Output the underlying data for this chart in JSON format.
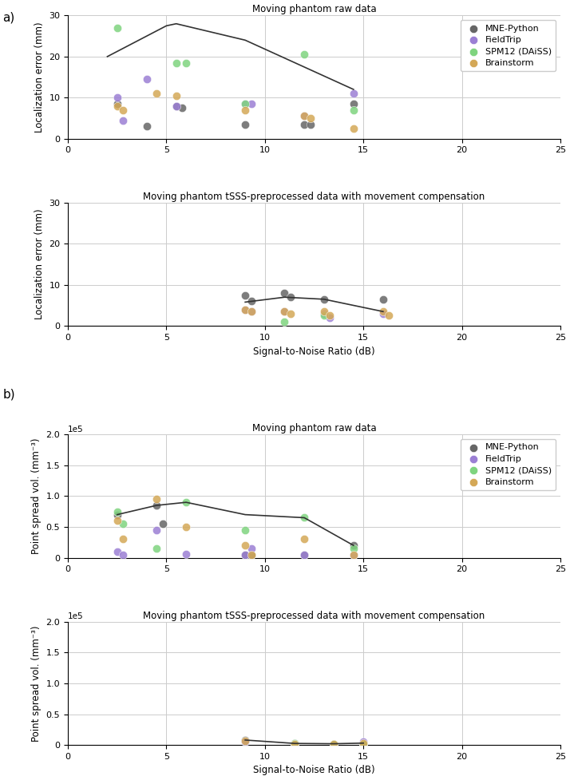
{
  "colors": {
    "MNE-Python": "#666666",
    "FieldTrip": "#9b7fd4",
    "SPM12 (DAiSS)": "#7fd47f",
    "Brainstorm": "#d4a857"
  },
  "legend_labels": [
    "MNE-Python",
    "FieldTrip",
    "SPM12 (DAiSS)",
    "Brainstorm"
  ],
  "panel_a_title1": "Moving phantom raw data",
  "panel_a_title2": "Moving phantom tSSS-preprocessed data with movement compensation",
  "panel_b_title1": "Moving phantom raw data",
  "panel_b_title2": "Moving phantom tSSS-preprocessed data with movement compensation",
  "ylabel_a": "Localization error (mm)",
  "ylabel_b": "Point spread vol. (mm⁻³)",
  "xlabel": "Signal-to-Noise Ratio (dB)",
  "panel_a1": {
    "ylim": [
      0,
      30
    ],
    "yticks": [
      0,
      10,
      20,
      30
    ],
    "xlim": [
      0,
      25
    ],
    "xticks": [
      0,
      5,
      10,
      15,
      20,
      25
    ],
    "MNE-Python": {
      "x": [
        2.5,
        4.0,
        5.5,
        5.8,
        9.0,
        12.0,
        12.3,
        14.5
      ],
      "y": [
        8.5,
        3.0,
        8.0,
        7.5,
        3.5,
        3.5,
        3.5,
        8.5
      ]
    },
    "FieldTrip": {
      "x": [
        2.5,
        2.8,
        4.0,
        5.5,
        9.0,
        9.3,
        12.0,
        14.5
      ],
      "y": [
        10.0,
        4.5,
        14.5,
        8.0,
        8.5,
        8.5,
        5.5,
        11.0
      ]
    },
    "SPM12 (DAiSS)": {
      "x": [
        2.5,
        5.5,
        6.0,
        9.0,
        12.0,
        14.5
      ],
      "y": [
        27.0,
        18.5,
        18.5,
        8.5,
        20.5,
        7.0
      ]
    },
    "Brainstorm": {
      "x": [
        2.5,
        2.8,
        4.5,
        5.5,
        9.0,
        12.0,
        12.3,
        14.5
      ],
      "y": [
        8.0,
        7.0,
        11.0,
        10.5,
        7.0,
        5.5,
        5.0,
        2.5
      ]
    },
    "curve_x": [
      2.0,
      5.0,
      5.5,
      9.0,
      14.5
    ],
    "curve_y": [
      20.0,
      27.5,
      28.0,
      24.0,
      12.0
    ]
  },
  "panel_a2": {
    "ylim": [
      0,
      30
    ],
    "yticks": [
      0,
      10,
      20,
      30
    ],
    "xlim": [
      0,
      25
    ],
    "xticks": [
      0,
      5,
      10,
      15,
      20,
      25
    ],
    "MNE-Python": {
      "x": [
        9.0,
        9.3,
        11.0,
        11.3,
        13.0,
        16.0
      ],
      "y": [
        7.5,
        6.0,
        8.0,
        7.0,
        6.5,
        6.5
      ]
    },
    "FieldTrip": {
      "x": [
        9.0,
        9.3,
        11.0,
        13.0,
        13.3,
        16.0
      ],
      "y": [
        4.0,
        3.5,
        3.5,
        3.0,
        2.0,
        3.0
      ]
    },
    "SPM12 (DAiSS)": {
      "x": [
        11.0,
        13.0
      ],
      "y": [
        1.0,
        2.5
      ]
    },
    "Brainstorm": {
      "x": [
        9.0,
        9.3,
        11.0,
        11.3,
        13.0,
        13.3,
        16.0,
        16.3
      ],
      "y": [
        4.0,
        3.5,
        3.5,
        3.0,
        3.5,
        2.5,
        3.5,
        2.5
      ]
    },
    "curve_x": [
      9.0,
      11.0,
      13.0,
      16.0
    ],
    "curve_y": [
      5.8,
      7.0,
      6.5,
      3.5
    ]
  },
  "panel_b1": {
    "ylim": [
      0,
      200000
    ],
    "yticks": [
      0,
      50000,
      100000,
      150000,
      200000
    ],
    "ytick_labels": [
      "0",
      "0.5",
      "1.0",
      "1.5",
      "2.0"
    ],
    "xlim": [
      0,
      25
    ],
    "xticks": [
      0,
      5,
      10,
      15,
      20,
      25
    ],
    "MNE-Python": {
      "x": [
        2.5,
        4.5,
        4.8,
        9.0,
        9.3,
        12.0,
        14.5
      ],
      "y": [
        70000,
        85000,
        55000,
        5000,
        5000,
        5000,
        20000
      ]
    },
    "FieldTrip": {
      "x": [
        2.5,
        2.8,
        4.5,
        6.0,
        9.0,
        9.3,
        12.0,
        14.5
      ],
      "y": [
        10000,
        5000,
        45000,
        6000,
        5000,
        15000,
        5000,
        5000
      ]
    },
    "SPM12 (DAiSS)": {
      "x": [
        2.5,
        2.8,
        4.5,
        6.0,
        9.0,
        12.0,
        14.5
      ],
      "y": [
        75000,
        55000,
        15000,
        90000,
        45000,
        65000,
        15000
      ]
    },
    "Brainstorm": {
      "x": [
        2.5,
        2.8,
        4.5,
        6.0,
        9.0,
        9.3,
        12.0,
        14.5
      ],
      "y": [
        60000,
        30000,
        95000,
        50000,
        20000,
        5000,
        30000,
        5000
      ]
    },
    "curve_x": [
      2.5,
      4.5,
      6.0,
      9.0,
      12.0,
      14.5
    ],
    "curve_y": [
      70000,
      85000,
      90000,
      70000,
      65000,
      20000
    ]
  },
  "panel_b2": {
    "ylim": [
      0,
      200000
    ],
    "yticks": [
      0,
      50000,
      100000,
      150000,
      200000
    ],
    "ytick_labels": [
      "0",
      "0.5",
      "1.0",
      "1.5",
      "2.0"
    ],
    "xlim": [
      0,
      25
    ],
    "xticks": [
      0,
      5,
      10,
      15,
      20,
      25
    ],
    "MNE-Python": {
      "x": [
        9.0,
        11.5,
        13.5,
        15.0
      ],
      "y": [
        8000,
        3000,
        2000,
        3000
      ]
    },
    "FieldTrip": {
      "x": [
        9.0,
        11.5,
        13.5,
        15.0
      ],
      "y": [
        5000,
        2000,
        1500,
        5000
      ]
    },
    "SPM12 (DAiSS)": {
      "x": [
        11.5,
        13.5,
        15.0
      ],
      "y": [
        3000,
        1500,
        2000
      ]
    },
    "Brainstorm": {
      "x": [
        9.0,
        11.5,
        13.5,
        15.0
      ],
      "y": [
        6000,
        2000,
        2000,
        3000
      ]
    },
    "curve_x": [
      9.0,
      11.5,
      13.5,
      15.0
    ],
    "curve_y": [
      8000,
      2500,
      2000,
      3000
    ]
  }
}
